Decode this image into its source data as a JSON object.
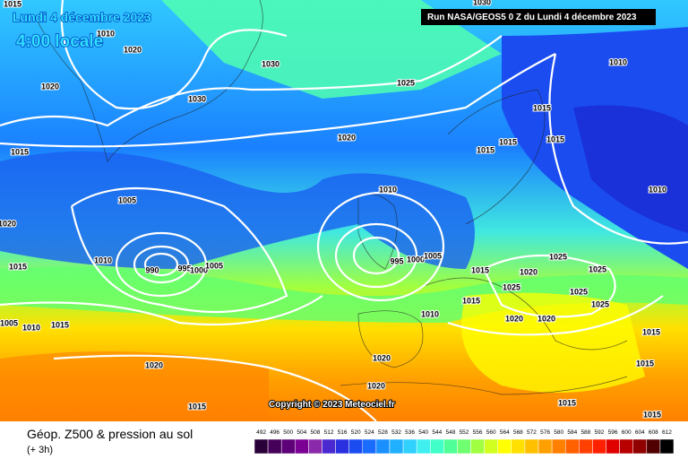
{
  "header": {
    "date": "Lundi 4 décembre 2023",
    "time": "4:00 locale",
    "run": "Run NASA/GEOS5 0 Z du Lundi 4 décembre 2023"
  },
  "copyright": "Copyright © 2023 Meteociel.fr",
  "footer": {
    "title": "Géop. Z500 & pression au sol",
    "step": "(+ 3h)"
  },
  "scale": {
    "ticks": [
      492,
      496,
      500,
      504,
      508,
      512,
      516,
      520,
      524,
      528,
      532,
      536,
      540,
      544,
      548,
      552,
      556,
      560,
      564,
      568,
      572,
      576,
      580,
      584,
      588,
      592,
      596,
      600,
      604,
      608,
      612
    ],
    "colors": [
      "#2a0038",
      "#45005a",
      "#5e0078",
      "#7a0094",
      "#8a2aaa",
      "#4a2ad0",
      "#2a30e0",
      "#1a4cf0",
      "#1a6cff",
      "#1a90ff",
      "#20b0ff",
      "#30d0ff",
      "#40f0f0",
      "#40ffc8",
      "#50ff98",
      "#70ff70",
      "#a0ff40",
      "#d0ff20",
      "#ffff00",
      "#ffe000",
      "#ffc000",
      "#ffa000",
      "#ff8000",
      "#ff6000",
      "#ff4000",
      "#ff2000",
      "#e00000",
      "#b80000",
      "#900000",
      "#500000",
      "#000000"
    ]
  },
  "isobars": {
    "labels": [
      1015,
      1010,
      1020,
      1030,
      1020,
      1030,
      1025,
      1030,
      1010,
      1015,
      1020,
      1015,
      1015,
      1015,
      1015,
      1010,
      1005,
      1010,
      1020,
      1010,
      990,
      995,
      1000,
      1005,
      1015,
      995,
      1000,
      1005,
      1025,
      1025,
      1015,
      1020,
      1025,
      1025,
      1025,
      1015,
      1010,
      1005,
      1010,
      1015,
      1020,
      1020,
      1015,
      1020,
      1020,
      1015,
      1020,
      1015,
      1015,
      1015
    ]
  }
}
